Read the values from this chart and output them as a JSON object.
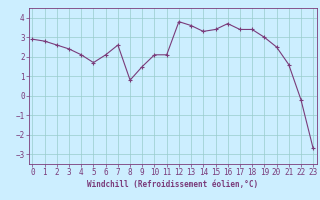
{
  "x": [
    0,
    1,
    2,
    3,
    4,
    5,
    6,
    7,
    8,
    9,
    10,
    11,
    12,
    13,
    14,
    15,
    16,
    17,
    18,
    19,
    20,
    21,
    22,
    23
  ],
  "y": [
    2.9,
    2.8,
    2.6,
    2.4,
    2.1,
    1.7,
    2.1,
    2.6,
    0.8,
    1.5,
    2.1,
    2.1,
    3.8,
    3.6,
    3.3,
    3.4,
    3.7,
    3.4,
    3.4,
    3.0,
    2.5,
    1.6,
    -0.2,
    -2.7
  ],
  "line_color": "#7a3b7a",
  "marker": "+",
  "bg_color": "#cceeff",
  "grid_color": "#99cccc",
  "axis_color": "#7a3b7a",
  "tick_color": "#7a3b7a",
  "xlabel": "Windchill (Refroidissement éolien,°C)",
  "xlabel_fontsize": 5.5,
  "tick_label_fontsize": 5.5,
  "ylim": [
    -3.5,
    4.5
  ],
  "yticks": [
    -3,
    -2,
    -1,
    0,
    1,
    2,
    3,
    4
  ],
  "xticks": [
    0,
    1,
    2,
    3,
    4,
    5,
    6,
    7,
    8,
    9,
    10,
    11,
    12,
    13,
    14,
    15,
    16,
    17,
    18,
    19,
    20,
    21,
    22,
    23
  ],
  "xlim": [
    -0.3,
    23.3
  ]
}
